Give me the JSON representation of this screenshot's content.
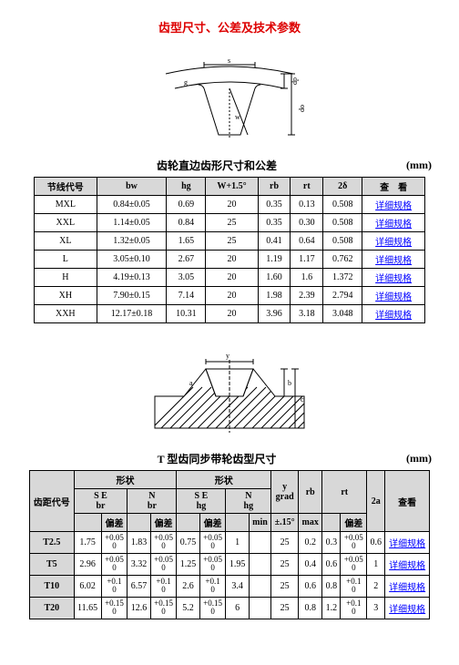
{
  "title_main": "齿型尺寸、公差及技术参数",
  "section1_title": "齿轮直边齿形尺寸和公差",
  "section2_title": "T 型齿同步带轮齿型尺寸",
  "unit_label": "(mm)",
  "link_text": "详细规格",
  "tbl1": {
    "headers": [
      "节线代号",
      "bw",
      "hg",
      "W+1.5°",
      "rb",
      "rt",
      "2δ",
      "查　看"
    ],
    "rows": [
      {
        "c": [
          "MXL",
          "0.84±0.05",
          "0.69",
          "20",
          "0.35",
          "0.13",
          "0.508"
        ]
      },
      {
        "c": [
          "XXL",
          "1.14±0.05",
          "0.84",
          "25",
          "0.35",
          "0.30",
          "0.508"
        ]
      },
      {
        "c": [
          "XL",
          "1.32±0.05",
          "1.65",
          "25",
          "0.41",
          "0.64",
          "0.508"
        ]
      },
      {
        "c": [
          "L",
          "3.05±0.10",
          "2.67",
          "20",
          "1.19",
          "1.17",
          "0.762"
        ]
      },
      {
        "c": [
          "H",
          "4.19±0.13",
          "3.05",
          "20",
          "1.60",
          "1.6",
          "1.372"
        ]
      },
      {
        "c": [
          "XH",
          "7.90±0.15",
          "7.14",
          "20",
          "1.98",
          "2.39",
          "2.794"
        ]
      },
      {
        "c": [
          "XXH",
          "12.17±0.18",
          "10.31",
          "20",
          "3.96",
          "3.18",
          "3.048"
        ]
      }
    ]
  },
  "tbl2": {
    "top": {
      "pitch": "齿距代号",
      "shape": "形状",
      "se_br": "S E\nbr",
      "n_br": "N\nbr",
      "se_hg": "S E\nhg",
      "n_hg": "N\nhg",
      "y": "y\ngrad",
      "rb": "rb",
      "rt": "rt",
      "twoa": "2a",
      "view": "查看",
      "dev": "偏差",
      "min": "min",
      "pm": "±.15°",
      "max": "max"
    },
    "rows": [
      {
        "pitch": "T2.5",
        "bw": "1.75",
        "bw_t": "+0.05",
        "bw_b": "0",
        "nbr": "1.83",
        "nbr_t": "+0.05",
        "nbr_b": "0",
        "hg": "0.75",
        "hg_t": "+0.05",
        "hg_b": "0",
        "nhg": "1",
        "y": "25",
        "rb": "0.2",
        "rt": "0.3",
        "rt_t": "+0.05",
        "rt_b": "0",
        "a": "0.6"
      },
      {
        "pitch": "T5",
        "bw": "2.96",
        "bw_t": "+0.05",
        "bw_b": "0",
        "nbr": "3.32",
        "nbr_t": "+0.05",
        "nbr_b": "0",
        "hg": "1.25",
        "hg_t": "+0.05",
        "hg_b": "0",
        "nhg": "1.95",
        "y": "25",
        "rb": "0.4",
        "rt": "0.6",
        "rt_t": "+0.05",
        "rt_b": "0",
        "a": "1"
      },
      {
        "pitch": "T10",
        "bw": "6.02",
        "bw_t": "+0.1",
        "bw_b": "0",
        "nbr": "6.57",
        "nbr_t": "+0.1",
        "nbr_b": "0",
        "hg": "2.6",
        "hg_t": "+0.1",
        "hg_b": "0",
        "nhg": "3.4",
        "y": "25",
        "rb": "0.6",
        "rt": "0.8",
        "rt_t": "+0.1",
        "rt_b": "0",
        "a": "2"
      },
      {
        "pitch": "T20",
        "bw": "11.65",
        "bw_t": "+0.15",
        "bw_b": "0",
        "nbr": "12.6",
        "nbr_t": "+0.15",
        "nbr_b": "0",
        "hg": "5.2",
        "hg_t": "+0.15",
        "hg_b": "0",
        "nhg": "6",
        "y": "25",
        "rb": "0.8",
        "rt": "1.2",
        "rt_t": "+0.1",
        "rt_b": "0",
        "a": "3"
      }
    ]
  },
  "colors": {
    "red": "#d00",
    "link": "#00f",
    "header_bg": "#d8d8d8"
  }
}
